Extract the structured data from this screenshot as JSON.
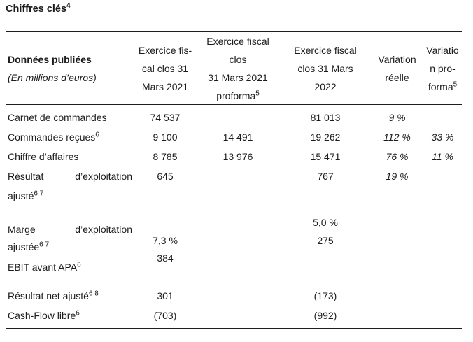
{
  "page_title": {
    "text": "Chiffres clés",
    "sup": "4"
  },
  "table": {
    "header": {
      "col_label": {
        "title": "Données publiées",
        "subtitle": "(En millions d’euros)"
      },
      "col_fy2021": {
        "lines": [
          "Exercice fis-",
          "cal clos 31",
          "Mars 2021"
        ]
      },
      "col_fy2021_proforma": {
        "lines": [
          "Exercice fiscal",
          "clos",
          "31 Mars 2021"
        ],
        "last_line": "proforma",
        "last_line_sup": "5"
      },
      "col_fy2022": {
        "lines": [
          "Exercice fiscal",
          "clos 31 Mars",
          "2022"
        ]
      },
      "col_variation_reelle": {
        "lines": [
          "Variation",
          "réelle"
        ]
      },
      "col_variation_proforma": {
        "lines": [
          "Variatio",
          "n pro-"
        ],
        "last_line": "forma",
        "last_line_sup": "5"
      }
    },
    "rows": {
      "carnet": {
        "label": "Carnet de commandes",
        "sup": "",
        "fy2021": "74 537",
        "fy2021_proforma": "",
        "fy2022": "81 013",
        "var_reelle": "9 %",
        "var_proforma": ""
      },
      "commandes_recues": {
        "label": "Commandes reçues",
        "sup": "6",
        "fy2021": "9 100",
        "fy2021_proforma": "14 491",
        "fy2022": "19 262",
        "var_reelle": "112 %",
        "var_proforma": "33 %"
      },
      "chiffre_affaires": {
        "label": "Chiffre d’affaires",
        "sup": "",
        "fy2021": "8 785",
        "fy2021_proforma": "13 976",
        "fy2022": "15 471",
        "var_reelle": "76 %",
        "var_proforma": "11 %"
      },
      "resultat_exploitation": {
        "label_word1": "Résultat",
        "label_word2": "d’exploitation",
        "label_line2": "ajusté",
        "label_line2_sup": "6 7",
        "fy2021": "645",
        "fy2021_proforma": "",
        "fy2022": "767",
        "var_reelle": "19 %",
        "var_proforma": ""
      },
      "marge_et_ebit": {
        "label_word1": "Marge",
        "label_word2": "d’exploitation",
        "label_line2": "ajustée",
        "label_line2_sup": "6 7",
        "label_line3": "EBIT avant APA",
        "label_line3_sup": "6",
        "fy2021_margin": "7,3 %",
        "fy2021_ebit": "384",
        "fy2022_margin": "5,0 %",
        "fy2022_ebit": "275"
      },
      "resultat_net": {
        "label": "Résultat net ajusté",
        "sup": "6 8",
        "fy2021": "301",
        "fy2021_proforma": "",
        "fy2022": "(173)",
        "var_reelle": "",
        "var_proforma": ""
      },
      "cash_flow": {
        "label": "Cash-Flow libre",
        "sup": "6",
        "fy2021": "(703)",
        "fy2021_proforma": "",
        "fy2022": "(992)",
        "var_reelle": "",
        "var_proforma": ""
      }
    }
  }
}
